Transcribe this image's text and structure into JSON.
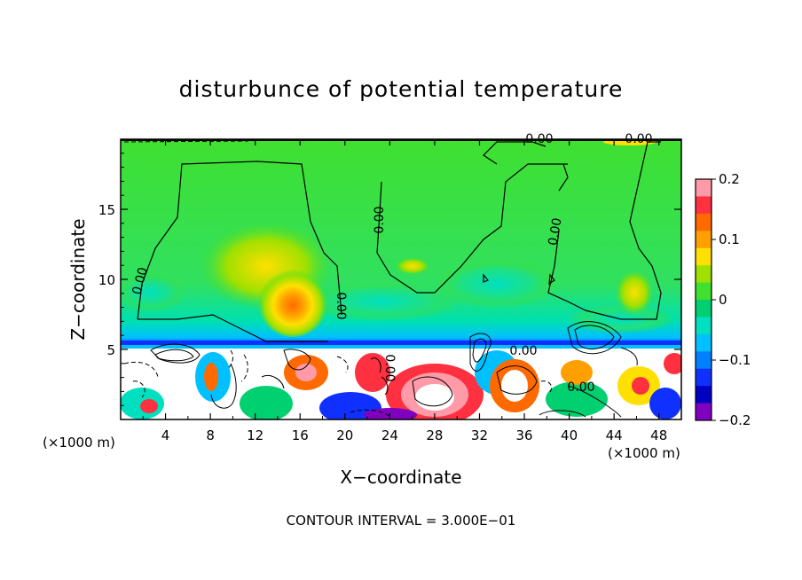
{
  "chart_data": {
    "type": "heatmap",
    "title": "disturbunce of potential temperature",
    "xlabel": "X−coordinate",
    "ylabel": "Z−coordinate",
    "x_unit_left": "(×1000 m)",
    "x_unit_right": "(×1000 m)",
    "xlim": [
      0,
      50
    ],
    "ylim": [
      0,
      20
    ],
    "x_ticks": [
      4,
      8,
      12,
      16,
      20,
      24,
      28,
      32,
      36,
      40,
      44,
      48
    ],
    "x_tick_labels": [
      "4",
      "8",
      "12",
      "16",
      "20",
      "24",
      "28",
      "32",
      "36",
      "40",
      "44",
      "48"
    ],
    "y_ticks": [
      5,
      10,
      15
    ],
    "y_tick_labels": [
      "5",
      "10",
      "15"
    ],
    "colorbar": {
      "range": [
        -0.2,
        0.2
      ],
      "tick_values": [
        0.2,
        0.1,
        0,
        -0.1,
        -0.2
      ],
      "tick_labels": [
        "0.2",
        "0.1",
        "0",
        "−0.1",
        "−0.2"
      ],
      "colors": [
        "#ff9aa8",
        "#ff3040",
        "#ff6a00",
        "#ffa000",
        "#ffe000",
        "#a0e000",
        "#40e030",
        "#00d070",
        "#00e0c0",
        "#00c0ff",
        "#0080ff",
        "#1030ff",
        "#0000c0",
        "#8000c0"
      ]
    },
    "contour_labels": [
      "0.00",
      "0.00",
      "0.00",
      "0.00",
      "0.00",
      "0.00",
      "0.00",
      "0.00",
      "0.00"
    ],
    "contour_interval_text": "CONTOUR INTERVAL = 3.000E−01"
  }
}
